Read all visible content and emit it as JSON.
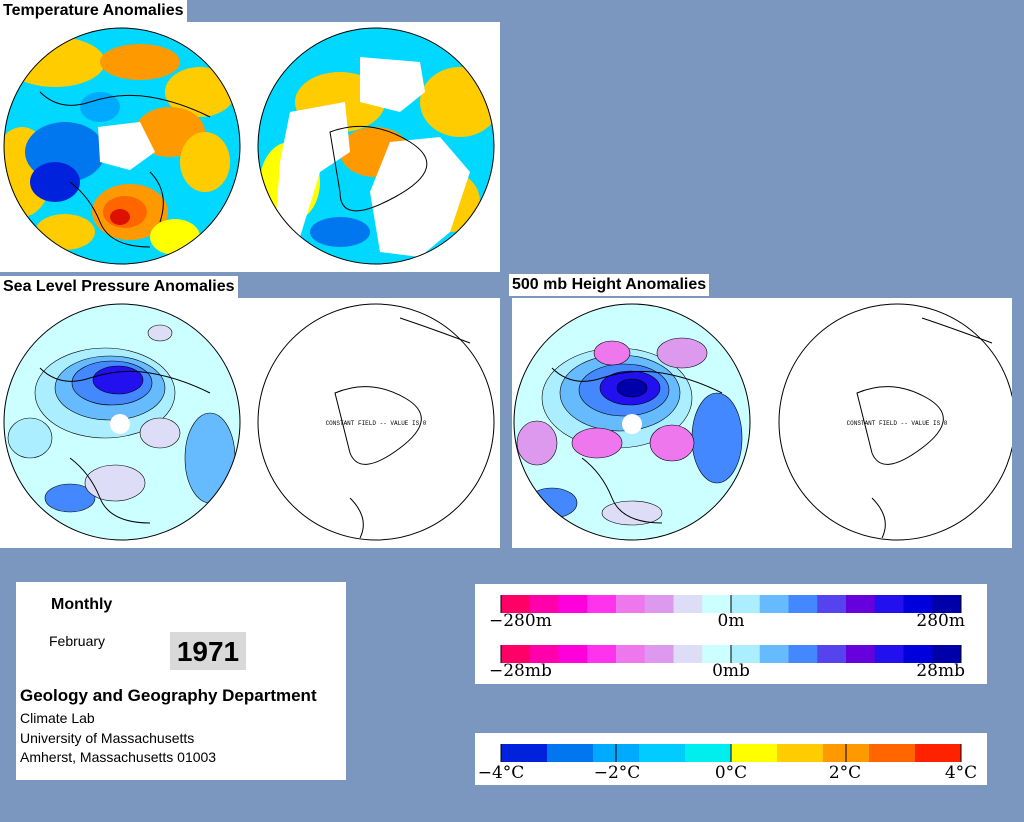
{
  "titles": {
    "temperature": "Temperature Anomalies",
    "slp": "Sea Level Pressure Anomalies",
    "height500": "500 mb Height Anomalies"
  },
  "map_note": "CONSTANT FIELD -- VALUE IS 0",
  "info": {
    "period": "Monthly",
    "month": "February",
    "year": "1971",
    "department": "Geology and Geography Department",
    "lab": "Climate Lab",
    "university": "University of Massachusetts",
    "address": "Amherst, Massachusetts 01003"
  },
  "legend_height": {
    "min_label": "−280m",
    "mid_label": "0m",
    "max_label": "280m",
    "colors": [
      "#ff0066",
      "#ff00aa",
      "#ff00dd",
      "#ff33ee",
      "#ee77ee",
      "#dd99ee",
      "#ddddf8",
      "#ccffff",
      "#aaeeff",
      "#66bbff",
      "#4488ff",
      "#5544ee",
      "#6600dd",
      "#2211ee",
      "#0000dd",
      "#0000aa"
    ]
  },
  "legend_pressure": {
    "min_label": "−28mb",
    "mid_label": "0mb",
    "max_label": "28mb"
  },
  "legend_temperature": {
    "labels": [
      "−4°C",
      "−2°C",
      "0°C",
      "2°C",
      "4°C"
    ],
    "colors": [
      "#0022dd",
      "#0077ee",
      "#00aaff",
      "#00ccff",
      "#00eeee",
      "#ffff00",
      "#ffcc00",
      "#ff9900",
      "#ff6600",
      "#ff2200"
    ]
  }
}
